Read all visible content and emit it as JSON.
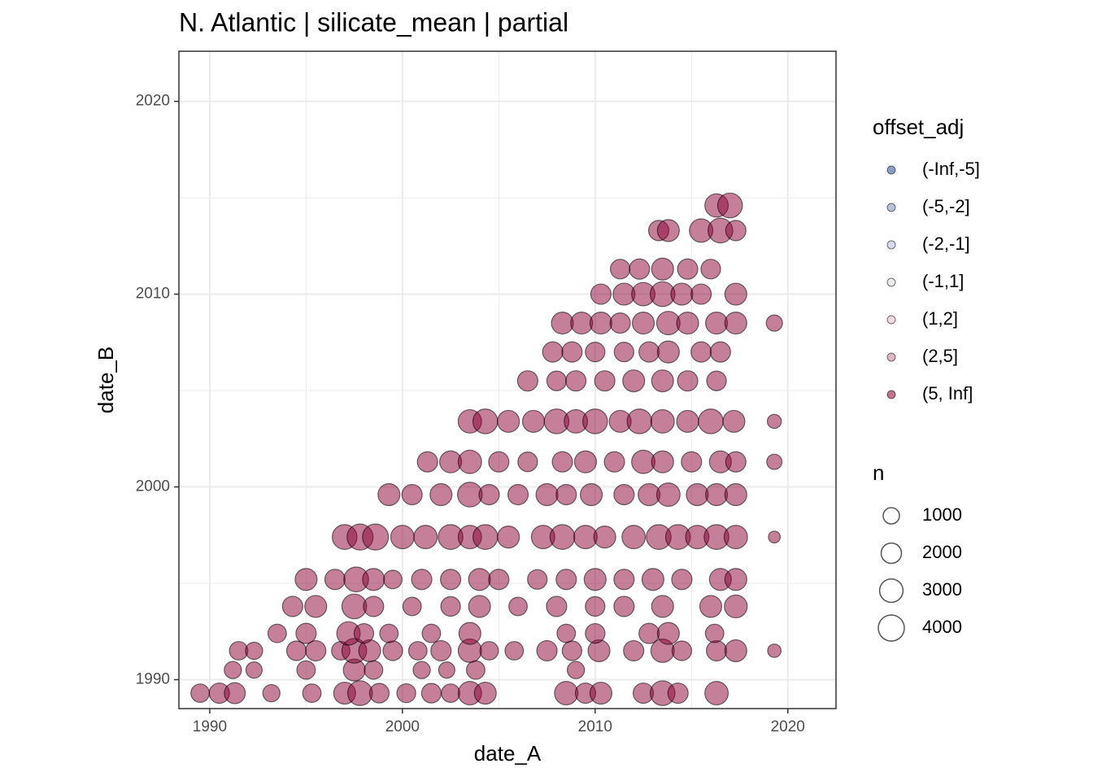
{
  "chart_data": {
    "type": "scatter",
    "title": "N. Atlantic | silicate_mean | partial",
    "x_label": "date_A",
    "y_label": "date_B",
    "xlim": [
      1988.4,
      2022.5
    ],
    "ylim": [
      1988.5,
      2022.6
    ],
    "xticks": [
      1990,
      2000,
      2010,
      2020
    ],
    "yticks": [
      1990,
      2000,
      2010,
      2020
    ],
    "xminor": [
      1995,
      2005,
      2015
    ],
    "yminor": [
      1995,
      2005,
      2015
    ],
    "grid": true,
    "legend_title": "offset_adj",
    "size_legend": {
      "title": "n",
      "values": [
        1000,
        2000,
        3000,
        4000
      ]
    },
    "series": [
      {
        "name": "(-Inf,-5]",
        "color": "#2c4fa0",
        "x": [],
        "y": [],
        "n": []
      },
      {
        "name": "(-5,-2]",
        "color": "#7f8fc0",
        "x": [],
        "y": [],
        "n": []
      },
      {
        "name": "(-2,-1]",
        "color": "#b8bedb",
        "x": [],
        "y": [],
        "n": []
      },
      {
        "name": "(-1,1]",
        "color": "#d9d9d9",
        "x": [],
        "y": [],
        "n": []
      },
      {
        "name": "(1,2]",
        "color": "#e2bcc6",
        "x": [],
        "y": [],
        "n": []
      },
      {
        "name": "(2,5]",
        "color": "#c67a92",
        "x": [],
        "y": [],
        "n": []
      },
      {
        "name": "(5, Inf]",
        "color": "#8b0033",
        "x": [
          1989.5,
          1990.5,
          1991.3,
          1993.2,
          1995.3,
          1997.0,
          1997.8,
          1998.8,
          2000.2,
          2001.5,
          2002.5,
          2003.5,
          2004.3,
          2008.5,
          2009.5,
          2010.3,
          2012.5,
          2013.5,
          2014.3,
          2016.3,
          1991.2,
          1992.3,
          1995.0,
          1997.5,
          1998.5,
          2001.0,
          2002.3,
          2003.8,
          2009.0,
          1991.5,
          1992.3,
          1994.5,
          1995.5,
          1996.8,
          1997.5,
          1998.3,
          1999.5,
          2000.8,
          2002.0,
          2003.5,
          2004.5,
          2005.8,
          2007.5,
          2008.8,
          2010.2,
          2012.0,
          2013.5,
          2014.5,
          2016.3,
          2017.3,
          2019.3,
          1993.5,
          1995.0,
          1997.2,
          1998.0,
          1999.3,
          2001.5,
          2003.5,
          2008.5,
          2010.0,
          2012.8,
          2013.8,
          2016.2,
          1994.3,
          1995.5,
          1997.5,
          1998.5,
          2000.5,
          2002.5,
          2004.0,
          2006.0,
          2008.0,
          2010.0,
          2011.5,
          2013.5,
          2016.0,
          2017.3,
          1995.0,
          1996.5,
          1997.6,
          1998.5,
          1999.5,
          2001.0,
          2002.5,
          2004.0,
          2005.0,
          2007.0,
          2008.5,
          2010.0,
          2011.5,
          2013.0,
          2014.5,
          2016.5,
          2017.3,
          1997.0,
          1997.8,
          1998.6,
          2000.0,
          2001.2,
          2002.5,
          2003.5,
          2004.3,
          2005.5,
          2007.3,
          2008.3,
          2009.5,
          2010.5,
          2012.0,
          2013.3,
          2014.3,
          2015.3,
          2016.3,
          2017.3,
          2019.3,
          1999.3,
          2000.5,
          2002.0,
          2003.5,
          2004.5,
          2006.0,
          2007.5,
          2008.5,
          2009.8,
          2011.5,
          2012.8,
          2013.8,
          2015.3,
          2016.3,
          2017.3,
          2001.3,
          2002.5,
          2003.5,
          2005.0,
          2006.5,
          2008.3,
          2009.5,
          2011.0,
          2012.5,
          2013.5,
          2015.0,
          2016.5,
          2017.3,
          2019.3,
          2003.5,
          2004.3,
          2005.5,
          2006.8,
          2008.0,
          2009.0,
          2010.0,
          2011.3,
          2012.3,
          2013.5,
          2014.8,
          2016.0,
          2017.2,
          2019.3,
          2006.5,
          2008.0,
          2009.0,
          2010.5,
          2012.0,
          2013.5,
          2014.8,
          2016.3,
          2007.8,
          2008.8,
          2010.0,
          2011.5,
          2012.8,
          2013.8,
          2015.5,
          2016.5,
          2008.3,
          2009.3,
          2010.3,
          2011.3,
          2012.5,
          2013.8,
          2014.8,
          2016.3,
          2017.3,
          2019.3,
          2010.3,
          2011.5,
          2012.5,
          2013.5,
          2014.5,
          2015.5,
          2017.3,
          2011.3,
          2012.3,
          2013.5,
          2014.8,
          2016.0,
          2013.3,
          2013.8,
          2015.5,
          2016.5,
          2017.3,
          2016.3,
          2017.0
        ],
        "y": [
          1989.3,
          1989.3,
          1989.3,
          1989.3,
          1989.3,
          1989.3,
          1989.3,
          1989.3,
          1989.3,
          1989.3,
          1989.3,
          1989.3,
          1989.3,
          1989.3,
          1989.3,
          1989.3,
          1989.3,
          1989.3,
          1989.3,
          1989.3,
          1990.5,
          1990.5,
          1990.5,
          1990.5,
          1990.5,
          1990.5,
          1990.5,
          1990.5,
          1990.5,
          1991.5,
          1991.5,
          1991.5,
          1991.5,
          1991.5,
          1991.5,
          1991.5,
          1991.5,
          1991.5,
          1991.5,
          1991.5,
          1991.5,
          1991.5,
          1991.5,
          1991.5,
          1991.5,
          1991.5,
          1991.5,
          1991.5,
          1991.5,
          1991.5,
          1991.5,
          1992.4,
          1992.4,
          1992.4,
          1992.4,
          1992.4,
          1992.4,
          1992.4,
          1992.4,
          1992.4,
          1992.4,
          1992.4,
          1992.4,
          1993.8,
          1993.8,
          1993.8,
          1993.8,
          1993.8,
          1993.8,
          1993.8,
          1993.8,
          1993.8,
          1993.8,
          1993.8,
          1993.8,
          1993.8,
          1993.8,
          1995.2,
          1995.2,
          1995.2,
          1995.2,
          1995.2,
          1995.2,
          1995.2,
          1995.2,
          1995.2,
          1995.2,
          1995.2,
          1995.2,
          1995.2,
          1995.2,
          1995.2,
          1995.2,
          1995.2,
          1997.4,
          1997.4,
          1997.4,
          1997.4,
          1997.4,
          1997.4,
          1997.4,
          1997.4,
          1997.4,
          1997.4,
          1997.4,
          1997.4,
          1997.4,
          1997.4,
          1997.4,
          1997.4,
          1997.4,
          1997.4,
          1997.4,
          1997.4,
          1999.6,
          1999.6,
          1999.6,
          1999.6,
          1999.6,
          1999.6,
          1999.6,
          1999.6,
          1999.6,
          1999.6,
          1999.6,
          1999.6,
          1999.6,
          1999.6,
          1999.6,
          2001.3,
          2001.3,
          2001.3,
          2001.3,
          2001.3,
          2001.3,
          2001.3,
          2001.3,
          2001.3,
          2001.3,
          2001.3,
          2001.3,
          2001.3,
          2001.3,
          2003.4,
          2003.4,
          2003.4,
          2003.4,
          2003.4,
          2003.4,
          2003.4,
          2003.4,
          2003.4,
          2003.4,
          2003.4,
          2003.4,
          2003.4,
          2003.4,
          2005.5,
          2005.5,
          2005.5,
          2005.5,
          2005.5,
          2005.5,
          2005.5,
          2005.5,
          2007.0,
          2007.0,
          2007.0,
          2007.0,
          2007.0,
          2007.0,
          2007.0,
          2007.0,
          2008.5,
          2008.5,
          2008.5,
          2008.5,
          2008.5,
          2008.5,
          2008.5,
          2008.5,
          2008.5,
          2008.5,
          2010.0,
          2010.0,
          2010.0,
          2010.0,
          2010.0,
          2010.0,
          2010.0,
          2011.3,
          2011.3,
          2011.3,
          2011.3,
          2011.3,
          2013.3,
          2013.3,
          2013.3,
          2013.3,
          2013.3,
          2014.6,
          2014.6
        ],
        "n": [
          1500,
          2000,
          2200,
          1200,
          1500,
          2500,
          3500,
          1800,
          1600,
          1800,
          1500,
          3000,
          2500,
          3000,
          2000,
          2500,
          2000,
          3500,
          2000,
          3000,
          1200,
          1000,
          1500,
          2500,
          1500,
          1200,
          1000,
          1500,
          1200,
          1500,
          1200,
          1800,
          2000,
          1500,
          3500,
          2500,
          1800,
          1500,
          2000,
          3000,
          1500,
          1500,
          2000,
          1800,
          2500,
          2000,
          3000,
          1800,
          2000,
          2500,
          500,
          1500,
          2000,
          3000,
          1800,
          1500,
          1500,
          2500,
          1500,
          1800,
          2000,
          2500,
          1500,
          2000,
          2500,
          3500,
          2000,
          1500,
          1800,
          2500,
          1500,
          2000,
          1800,
          2000,
          2500,
          2500,
          2800,
          2500,
          2000,
          3500,
          2500,
          1500,
          2000,
          2000,
          2500,
          2000,
          1800,
          2000,
          2500,
          2000,
          2500,
          2000,
          2500,
          2500,
          3500,
          4000,
          4000,
          3000,
          3000,
          3500,
          3000,
          3500,
          2500,
          3000,
          3500,
          3000,
          2500,
          3000,
          3500,
          3500,
          3000,
          3500,
          3000,
          300,
          2500,
          2000,
          2500,
          3500,
          2000,
          2000,
          2500,
          2000,
          2500,
          2000,
          2500,
          3000,
          2500,
          2500,
          2500,
          2000,
          2500,
          3000,
          2000,
          1800,
          2000,
          2500,
          2000,
          3000,
          2500,
          2000,
          2500,
          2000,
          800,
          3000,
          3500,
          2500,
          2500,
          3500,
          3000,
          3500,
          2500,
          3500,
          3000,
          2500,
          3500,
          2500,
          600,
          2000,
          1800,
          2000,
          2000,
          2500,
          2500,
          2000,
          1800,
          2000,
          2000,
          1800,
          1800,
          2000,
          2500,
          2000,
          2000,
          2500,
          2500,
          2500,
          2000,
          2500,
          3000,
          2500,
          2500,
          2500,
          1000,
          2000,
          2500,
          3000,
          3500,
          2500,
          2000,
          2500,
          1800,
          2000,
          2500,
          2000,
          1800,
          2000,
          2500,
          3000,
          3500,
          2000,
          3000,
          3500
        ]
      }
    ]
  }
}
